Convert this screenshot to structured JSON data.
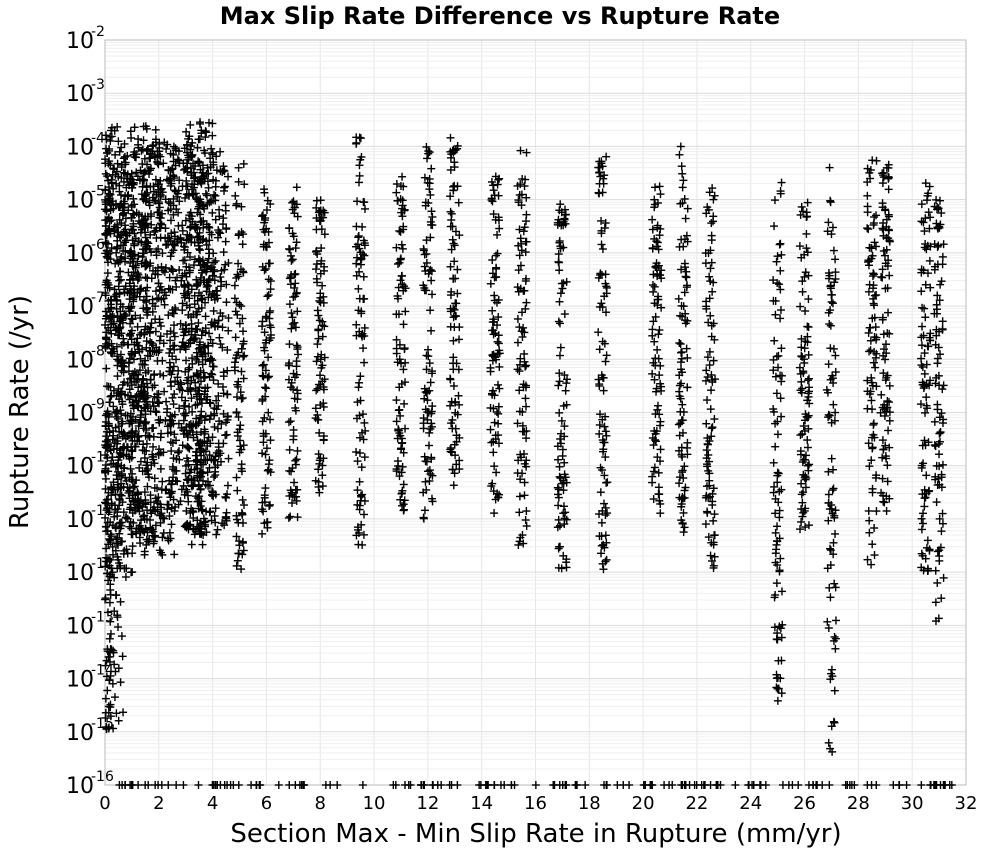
{
  "chart_data": {
    "type": "scatter",
    "title": "Max Slip Rate Difference vs Rupture Rate",
    "xlabel": "Section Max - Min Slip Rate in Rupture (mm/yr)",
    "ylabel": "Rupture Rate (/yr)",
    "xlim": [
      0,
      32
    ],
    "ylim": [
      1e-16,
      0.01
    ],
    "yscale": "log",
    "grid": true,
    "marker": "plus",
    "marker_color": "#000000",
    "x_ticks": [
      "0",
      "2",
      "4",
      "6",
      "8",
      "10",
      "12",
      "14",
      "16",
      "18",
      "20",
      "22",
      "24",
      "26",
      "28",
      "30",
      "32"
    ],
    "y_ticks": [
      {
        "base": "10",
        "exp": "-2"
      },
      {
        "base": "10",
        "exp": "-3"
      },
      {
        "base": "10",
        "exp": "-4"
      },
      {
        "base": "10",
        "exp": "-5"
      },
      {
        "base": "10",
        "exp": "-6"
      },
      {
        "base": "10",
        "exp": "-7"
      },
      {
        "base": "10",
        "exp": "-8"
      },
      {
        "base": "10",
        "exp": "-9"
      },
      {
        "base": "10",
        "exp": "-10"
      },
      {
        "base": "10",
        "exp": "-11"
      },
      {
        "base": "10",
        "exp": "-12"
      },
      {
        "base": "10",
        "exp": "-13"
      },
      {
        "base": "10",
        "exp": "-14"
      },
      {
        "base": "10",
        "exp": "-15"
      },
      {
        "base": "10",
        "exp": "-16"
      }
    ],
    "columns": [
      {
        "x": 0.1,
        "min": 1e-15,
        "max": 0.00025
      },
      {
        "x": 0.5,
        "min": 8e-13,
        "max": 0.00015
      },
      {
        "x": 1.0,
        "min": 5e-12,
        "max": 0.00012
      },
      {
        "x": 1.5,
        "min": 3e-12,
        "max": 0.00025
      },
      {
        "x": 2.0,
        "min": 2e-12,
        "max": 0.00012
      },
      {
        "x": 3.0,
        "min": 6e-12,
        "max": 0.0001
      },
      {
        "x": 3.5,
        "min": 3e-12,
        "max": 0.0003
      },
      {
        "x": 4.0,
        "min": 5e-12,
        "max": 8e-05
      },
      {
        "x": 5.0,
        "min": 1e-12,
        "max": 6e-05
      },
      {
        "x": 6.0,
        "min": 5e-12,
        "max": 2e-05
      },
      {
        "x": 7.0,
        "min": 1e-11,
        "max": 2e-05
      },
      {
        "x": 8.0,
        "min": 3e-11,
        "max": 1e-05
      },
      {
        "x": 9.5,
        "min": 3e-12,
        "max": 0.00015
      },
      {
        "x": 11.0,
        "min": 1e-11,
        "max": 3e-05
      },
      {
        "x": 12.0,
        "min": 1e-11,
        "max": 0.0001
      },
      {
        "x": 13.0,
        "min": 4e-11,
        "max": 0.00015
      },
      {
        "x": 14.5,
        "min": 1e-11,
        "max": 3e-05
      },
      {
        "x": 15.5,
        "min": 3e-12,
        "max": 0.0001
      },
      {
        "x": 17.0,
        "min": 1e-12,
        "max": 1e-05
      },
      {
        "x": 18.5,
        "min": 1e-12,
        "max": 7e-05
      },
      {
        "x": 20.5,
        "min": 1e-11,
        "max": 2e-05
      },
      {
        "x": 21.5,
        "min": 5e-12,
        "max": 0.00012
      },
      {
        "x": 22.5,
        "min": 1e-12,
        "max": 2e-05
      },
      {
        "x": 25.0,
        "min": 3e-15,
        "max": 3e-05
      },
      {
        "x": 26.0,
        "min": 5e-12,
        "max": 1e-05
      },
      {
        "x": 27.0,
        "min": 3e-16,
        "max": 4e-05
      },
      {
        "x": 28.5,
        "min": 1e-12,
        "max": 7e-05
      },
      {
        "x": 29.0,
        "min": 1e-11,
        "max": 5e-05
      },
      {
        "x": 30.5,
        "min": 1e-12,
        "max": 3e-05
      },
      {
        "x": 31.0,
        "min": 1e-13,
        "max": 1e-05
      }
    ],
    "floor_value": 1e-16
  }
}
